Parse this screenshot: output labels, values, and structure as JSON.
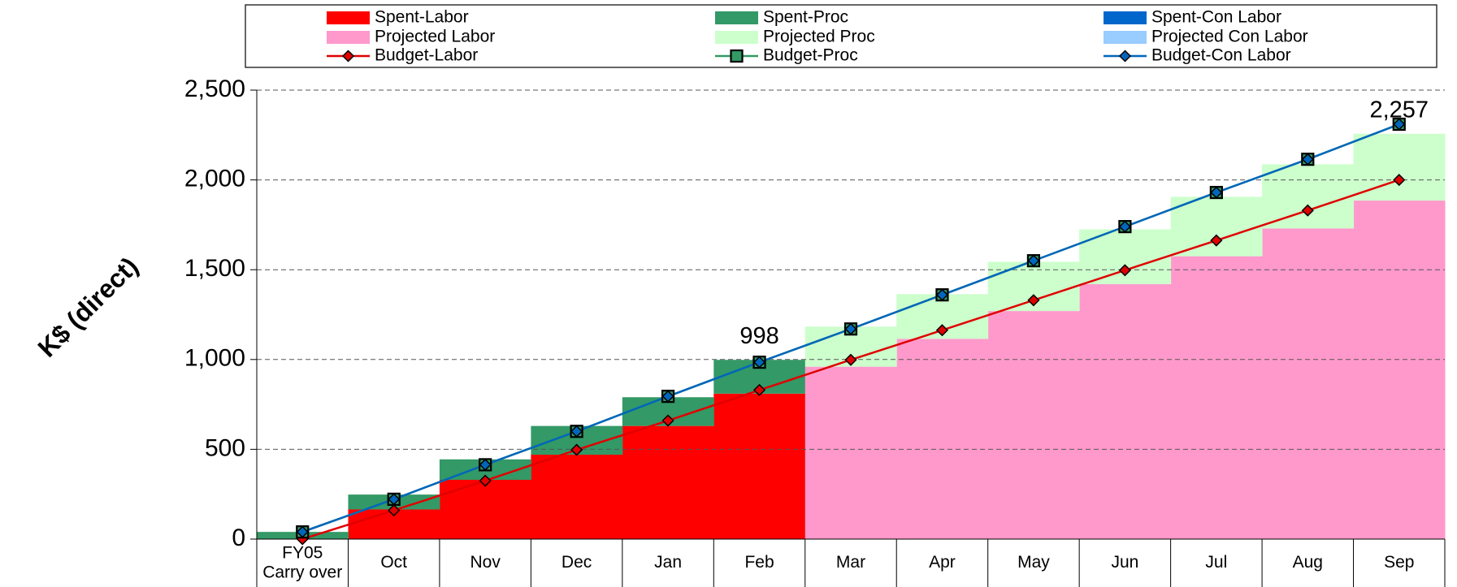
{
  "chart_data": {
    "type": "stacked_step_area",
    "ylabel": "K$ (direct)",
    "categories": [
      "FY05\nCarry over",
      "Oct",
      "Nov",
      "Dec",
      "Jan",
      "Feb",
      "Mar",
      "Apr",
      "May",
      "Jun",
      "Jul",
      "Aug",
      "Sep"
    ],
    "ylim": [
      0,
      2500
    ],
    "yticks": [
      0,
      500,
      {
        "value": 1000,
        "label": "1,000"
      },
      {
        "value": 1500,
        "label": "1,500"
      },
      {
        "value": 2000,
        "label": "2,000"
      },
      {
        "value": 2500,
        "label": "2,500"
      }
    ],
    "grid": true,
    "series": [
      {
        "name": "Spent-Labor",
        "kind": "area",
        "color": "#ff0000",
        "values": [
          0,
          165,
          330,
          470,
          630,
          810,
          null,
          null,
          null,
          null,
          null,
          null,
          null
        ]
      },
      {
        "name": "Spent-Proc",
        "kind": "area",
        "color": "#339966",
        "values": [
          40,
          83,
          114,
          160,
          160,
          188,
          null,
          null,
          null,
          null,
          null,
          null,
          null
        ]
      },
      {
        "name": "Spent-Con Labor",
        "kind": "area",
        "color": "#0066cc",
        "values": [
          null,
          null,
          null,
          null,
          null,
          null,
          null,
          null,
          null,
          null,
          null,
          null,
          null
        ]
      },
      {
        "name": "Projected Labor",
        "kind": "area",
        "color": "#ff99cc",
        "values": [
          null,
          null,
          null,
          null,
          null,
          null,
          960,
          1115,
          1270,
          1420,
          1575,
          1730,
          1885
        ]
      },
      {
        "name": "Projected Proc",
        "kind": "area",
        "color": "#ccffcc",
        "values": [
          null,
          null,
          null,
          null,
          null,
          null,
          223,
          249,
          274,
          305,
          331,
          357,
          372
        ]
      },
      {
        "name": "Projected Con Labor",
        "kind": "area",
        "color": "#99ccff",
        "values": [
          null,
          null,
          null,
          null,
          null,
          null,
          null,
          null,
          null,
          null,
          null,
          null,
          null
        ]
      },
      {
        "name": "Budget-Labor",
        "kind": "line",
        "marker": "diamond",
        "color": "#e00000",
        "values": [
          0,
          160,
          325,
          497,
          660,
          830,
          998,
          1163,
          1330,
          1497,
          1663,
          1830,
          2000
        ]
      },
      {
        "name": "Budget-Proc",
        "kind": "line",
        "marker": "square",
        "color": "#339966",
        "values": [
          40,
          222,
          414,
          600,
          795,
          985,
          1170,
          1360,
          1550,
          1740,
          1930,
          2115,
          2310
        ]
      },
      {
        "name": "Budget-Con Labor",
        "kind": "line",
        "marker": "diamond",
        "color": "#0066bb",
        "values": [
          40,
          222,
          414,
          600,
          795,
          985,
          1170,
          1360,
          1550,
          1740,
          1930,
          2115,
          2310
        ]
      }
    ],
    "annotations": [
      {
        "text": "998",
        "value": 998,
        "category": 5
      },
      {
        "text": "2,257",
        "value": 2257,
        "category": 12
      }
    ]
  }
}
